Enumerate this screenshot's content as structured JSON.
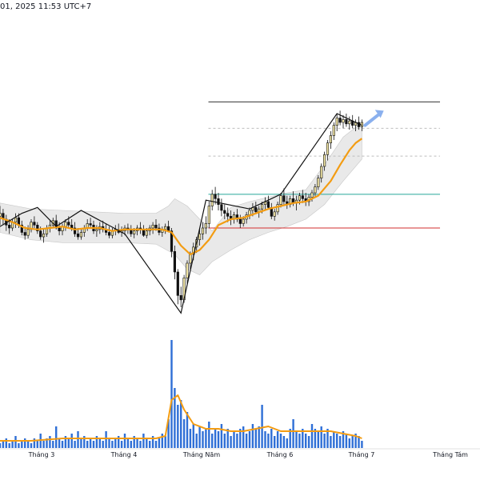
{
  "header": {
    "timestamp": "01, 2025 11:53 UTC+7"
  },
  "colors": {
    "candle_up_fill": "#f3e7a6",
    "candle_down_fill": "#111111",
    "ma_line": "#f39c12",
    "band_fill": "#e4e4e4",
    "volume_bar": "#2f6fd6",
    "volume_ma": "#f39c12",
    "level_top": "#333333",
    "level_green": "#26a69a",
    "level_red": "#d32f2f",
    "dashed": "#bdbdbd",
    "arrow": "#8ab0ee"
  },
  "chart_data": {
    "type": "candlestick",
    "x_axis": {
      "ticks": [
        "Tháng 3",
        "Tháng 4",
        "Tháng Năm",
        "Tháng 6",
        "Tháng 7",
        "Tháng Tám"
      ]
    },
    "candles": [
      [
        0,
        298,
        305,
        292,
        300
      ],
      [
        1,
        300,
        303,
        292,
        296
      ],
      [
        2,
        296,
        299,
        288,
        292
      ],
      [
        3,
        292,
        296,
        286,
        290
      ],
      [
        4,
        290,
        296,
        288,
        294
      ],
      [
        5,
        294,
        300,
        290,
        297
      ],
      [
        6,
        297,
        300,
        290,
        292
      ],
      [
        7,
        292,
        295,
        285,
        287
      ],
      [
        8,
        287,
        291,
        282,
        285
      ],
      [
        9,
        285,
        292,
        283,
        289
      ],
      [
        10,
        289,
        296,
        287,
        294
      ],
      [
        11,
        294,
        298,
        290,
        292
      ],
      [
        12,
        292,
        294,
        286,
        288
      ],
      [
        13,
        288,
        291,
        282,
        284
      ],
      [
        14,
        284,
        289,
        280,
        286
      ],
      [
        15,
        286,
        292,
        284,
        290
      ],
      [
        16,
        290,
        295,
        287,
        292
      ],
      [
        17,
        292,
        297,
        290,
        295
      ],
      [
        18,
        295,
        299,
        289,
        290
      ],
      [
        19,
        290,
        294,
        285,
        288
      ],
      [
        20,
        288,
        293,
        285,
        291
      ],
      [
        21,
        291,
        296,
        288,
        294
      ],
      [
        22,
        294,
        298,
        290,
        292
      ],
      [
        23,
        292,
        296,
        288,
        290
      ],
      [
        24,
        290,
        294,
        284,
        286
      ],
      [
        25,
        286,
        290,
        282,
        284
      ],
      [
        26,
        284,
        290,
        282,
        287
      ],
      [
        27,
        287,
        292,
        284,
        290
      ],
      [
        28,
        290,
        296,
        288,
        293
      ],
      [
        29,
        293,
        297,
        290,
        292
      ],
      [
        30,
        292,
        295,
        286,
        288
      ],
      [
        31,
        288,
        292,
        284,
        289
      ],
      [
        32,
        289,
        294,
        286,
        291
      ],
      [
        33,
        291,
        295,
        287,
        289
      ],
      [
        34,
        289,
        293,
        285,
        287
      ],
      [
        35,
        287,
        291,
        283,
        285
      ],
      [
        36,
        285,
        290,
        283,
        288
      ],
      [
        37,
        288,
        292,
        285,
        289
      ],
      [
        38,
        289,
        293,
        286,
        287
      ],
      [
        39,
        287,
        291,
        284,
        288
      ],
      [
        40,
        288,
        292,
        285,
        290
      ],
      [
        41,
        290,
        293,
        286,
        289
      ],
      [
        42,
        289,
        292,
        284,
        286
      ],
      [
        43,
        286,
        290,
        283,
        288
      ],
      [
        44,
        288,
        292,
        285,
        290
      ],
      [
        45,
        290,
        294,
        286,
        289
      ],
      [
        46,
        289,
        292,
        284,
        285
      ],
      [
        47,
        285,
        290,
        283,
        288
      ],
      [
        48,
        288,
        292,
        285,
        290
      ],
      [
        49,
        290,
        294,
        286,
        292
      ],
      [
        50,
        292,
        296,
        288,
        290
      ],
      [
        51,
        290,
        293,
        285,
        287
      ],
      [
        52,
        287,
        291,
        284,
        289
      ],
      [
        53,
        289,
        293,
        286,
        291
      ],
      [
        54,
        291,
        295,
        287,
        288
      ],
      [
        55,
        288,
        290,
        270,
        274
      ],
      [
        56,
        274,
        278,
        255,
        260
      ],
      [
        57,
        260,
        262,
        238,
        244
      ],
      [
        58,
        244,
        250,
        236,
        241
      ],
      [
        59,
        241,
        258,
        239,
        256
      ],
      [
        60,
        256,
        268,
        252,
        266
      ],
      [
        61,
        266,
        274,
        262,
        272
      ],
      [
        62,
        272,
        280,
        268,
        277
      ],
      [
        63,
        277,
        284,
        273,
        282
      ],
      [
        64,
        282,
        290,
        278,
        286
      ],
      [
        65,
        286,
        294,
        282,
        290
      ],
      [
        66,
        290,
        298,
        286,
        293
      ],
      [
        67,
        293,
        308,
        290,
        305
      ],
      [
        68,
        305,
        316,
        302,
        313
      ],
      [
        69,
        313,
        318,
        306,
        310
      ],
      [
        70,
        310,
        314,
        302,
        306
      ],
      [
        71,
        306,
        310,
        298,
        302
      ],
      [
        72,
        302,
        306,
        296,
        300
      ],
      [
        73,
        300,
        304,
        294,
        298
      ],
      [
        74,
        298,
        302,
        292,
        296
      ],
      [
        75,
        296,
        301,
        293,
        299
      ],
      [
        76,
        299,
        303,
        294,
        296
      ],
      [
        77,
        296,
        299,
        290,
        293
      ],
      [
        78,
        293,
        298,
        291,
        296
      ],
      [
        79,
        296,
        301,
        293,
        299
      ],
      [
        80,
        299,
        304,
        296,
        302
      ],
      [
        81,
        302,
        307,
        298,
        304
      ],
      [
        82,
        304,
        308,
        300,
        301
      ],
      [
        83,
        301,
        305,
        297,
        303
      ],
      [
        84,
        303,
        308,
        300,
        306
      ],
      [
        85,
        306,
        311,
        302,
        308
      ],
      [
        86,
        308,
        312,
        303,
        304
      ],
      [
        87,
        304,
        307,
        296,
        298
      ],
      [
        88,
        298,
        303,
        295,
        301
      ],
      [
        89,
        301,
        308,
        299,
        306
      ],
      [
        90,
        306,
        314,
        304,
        312
      ],
      [
        91,
        312,
        317,
        306,
        308
      ],
      [
        92,
        308,
        312,
        303,
        306
      ],
      [
        93,
        306,
        312,
        304,
        310
      ],
      [
        94,
        310,
        315,
        305,
        307
      ],
      [
        95,
        307,
        312,
        302,
        309
      ],
      [
        96,
        309,
        314,
        306,
        312
      ],
      [
        97,
        312,
        316,
        307,
        310
      ],
      [
        98,
        310,
        314,
        305,
        308
      ],
      [
        99,
        308,
        313,
        305,
        311
      ],
      [
        100,
        311,
        316,
        308,
        314
      ],
      [
        101,
        314,
        320,
        311,
        318
      ],
      [
        102,
        318,
        326,
        316,
        324
      ],
      [
        103,
        324,
        334,
        321,
        332
      ],
      [
        104,
        332,
        342,
        329,
        340
      ],
      [
        105,
        340,
        350,
        336,
        348
      ],
      [
        106,
        348,
        356,
        344,
        353
      ],
      [
        107,
        353,
        362,
        350,
        360
      ],
      [
        108,
        360,
        368,
        356,
        365
      ],
      [
        109,
        365,
        370,
        360,
        362
      ],
      [
        110,
        362,
        367,
        358,
        364
      ],
      [
        111,
        364,
        368,
        359,
        361
      ],
      [
        112,
        361,
        366,
        357,
        363
      ],
      [
        113,
        363,
        367,
        358,
        360
      ],
      [
        114,
        360,
        364,
        356,
        362
      ],
      [
        115,
        362,
        366,
        357,
        359
      ],
      [
        116,
        359,
        364,
        356,
        362
      ]
    ],
    "moving_average": [
      [
        0,
        297
      ],
      [
        4,
        294
      ],
      [
        8,
        290
      ],
      [
        12,
        289
      ],
      [
        16,
        290
      ],
      [
        20,
        291
      ],
      [
        24,
        289
      ],
      [
        28,
        290
      ],
      [
        32,
        290
      ],
      [
        36,
        288
      ],
      [
        40,
        289
      ],
      [
        44,
        289
      ],
      [
        48,
        289
      ],
      [
        52,
        289
      ],
      [
        55,
        287
      ],
      [
        58,
        278
      ],
      [
        61,
        272
      ],
      [
        64,
        275
      ],
      [
        67,
        282
      ],
      [
        70,
        292
      ],
      [
        74,
        296
      ],
      [
        78,
        297
      ],
      [
        82,
        300
      ],
      [
        86,
        303
      ],
      [
        90,
        305
      ],
      [
        94,
        307
      ],
      [
        98,
        308
      ],
      [
        102,
        312
      ],
      [
        106,
        322
      ],
      [
        109,
        333
      ],
      [
        112,
        343
      ],
      [
        114,
        348
      ],
      [
        116,
        351
      ]
    ],
    "band_upper": [
      [
        0,
        307
      ],
      [
        10,
        303
      ],
      [
        20,
        302
      ],
      [
        30,
        301
      ],
      [
        40,
        300
      ],
      [
        50,
        300
      ],
      [
        54,
        305
      ],
      [
        56,
        310
      ],
      [
        60,
        305
      ],
      [
        64,
        296
      ],
      [
        68,
        288
      ],
      [
        74,
        304
      ],
      [
        80,
        308
      ],
      [
        86,
        311
      ],
      [
        92,
        314
      ],
      [
        98,
        316
      ],
      [
        104,
        333
      ],
      [
        110,
        352
      ],
      [
        116,
        362
      ]
    ],
    "band_lower": [
      [
        0,
        287
      ],
      [
        10,
        282
      ],
      [
        20,
        280
      ],
      [
        30,
        280
      ],
      [
        40,
        280
      ],
      [
        50,
        279
      ],
      [
        56,
        272
      ],
      [
        60,
        262
      ],
      [
        64,
        258
      ],
      [
        68,
        267
      ],
      [
        74,
        275
      ],
      [
        80,
        282
      ],
      [
        86,
        287
      ],
      [
        92,
        291
      ],
      [
        98,
        296
      ],
      [
        104,
        306
      ],
      [
        110,
        322
      ],
      [
        116,
        337
      ]
    ],
    "zigzag": [
      [
        0,
        291
      ],
      [
        7,
        300
      ],
      [
        12,
        304
      ],
      [
        18,
        291
      ],
      [
        26,
        302
      ],
      [
        40,
        286
      ],
      [
        58,
        232
      ],
      [
        66,
        309
      ],
      [
        80,
        303
      ],
      [
        90,
        313
      ],
      [
        108,
        368
      ],
      [
        116,
        360
      ]
    ],
    "levels": {
      "top": 376,
      "dashed_1": 358,
      "green": 313,
      "dashed_2": 339,
      "red": 290
    },
    "level_start_index": 66,
    "arrow_from": [
      117,
      360
    ],
    "arrow_to": [
      123,
      370
    ],
    "volume": [
      2,
      3,
      4,
      2,
      3,
      5,
      2,
      3,
      4,
      3,
      2,
      4,
      3,
      6,
      3,
      4,
      5,
      3,
      9,
      4,
      3,
      5,
      4,
      6,
      3,
      7,
      4,
      5,
      3,
      4,
      3,
      5,
      4,
      3,
      7,
      4,
      3,
      4,
      5,
      3,
      6,
      4,
      3,
      5,
      4,
      3,
      6,
      4,
      3,
      5,
      3,
      4,
      6,
      5,
      12,
      45,
      25,
      18,
      20,
      12,
      15,
      8,
      10,
      6,
      9,
      7,
      8,
      11,
      6,
      8,
      7,
      10,
      6,
      8,
      5,
      7,
      6,
      8,
      9,
      6,
      7,
      10,
      8,
      9,
      18,
      7,
      6,
      8,
      5,
      7,
      6,
      5,
      4,
      8,
      12,
      7,
      6,
      8,
      6,
      5,
      10,
      8,
      7,
      9,
      6,
      8,
      5,
      7,
      6,
      5,
      7,
      6,
      4,
      5,
      6,
      5,
      3
    ],
    "volume_ma": [
      [
        0,
        3
      ],
      [
        10,
        3
      ],
      [
        20,
        4
      ],
      [
        30,
        4
      ],
      [
        40,
        4
      ],
      [
        50,
        4
      ],
      [
        53,
        5
      ],
      [
        55,
        20
      ],
      [
        57,
        22
      ],
      [
        59,
        16
      ],
      [
        62,
        10
      ],
      [
        66,
        8
      ],
      [
        70,
        8
      ],
      [
        74,
        7
      ],
      [
        78,
        7
      ],
      [
        82,
        8
      ],
      [
        86,
        9
      ],
      [
        90,
        7
      ],
      [
        94,
        7
      ],
      [
        98,
        7
      ],
      [
        102,
        7
      ],
      [
        106,
        7
      ],
      [
        110,
        6
      ],
      [
        114,
        5
      ],
      [
        116,
        4
      ]
    ]
  }
}
